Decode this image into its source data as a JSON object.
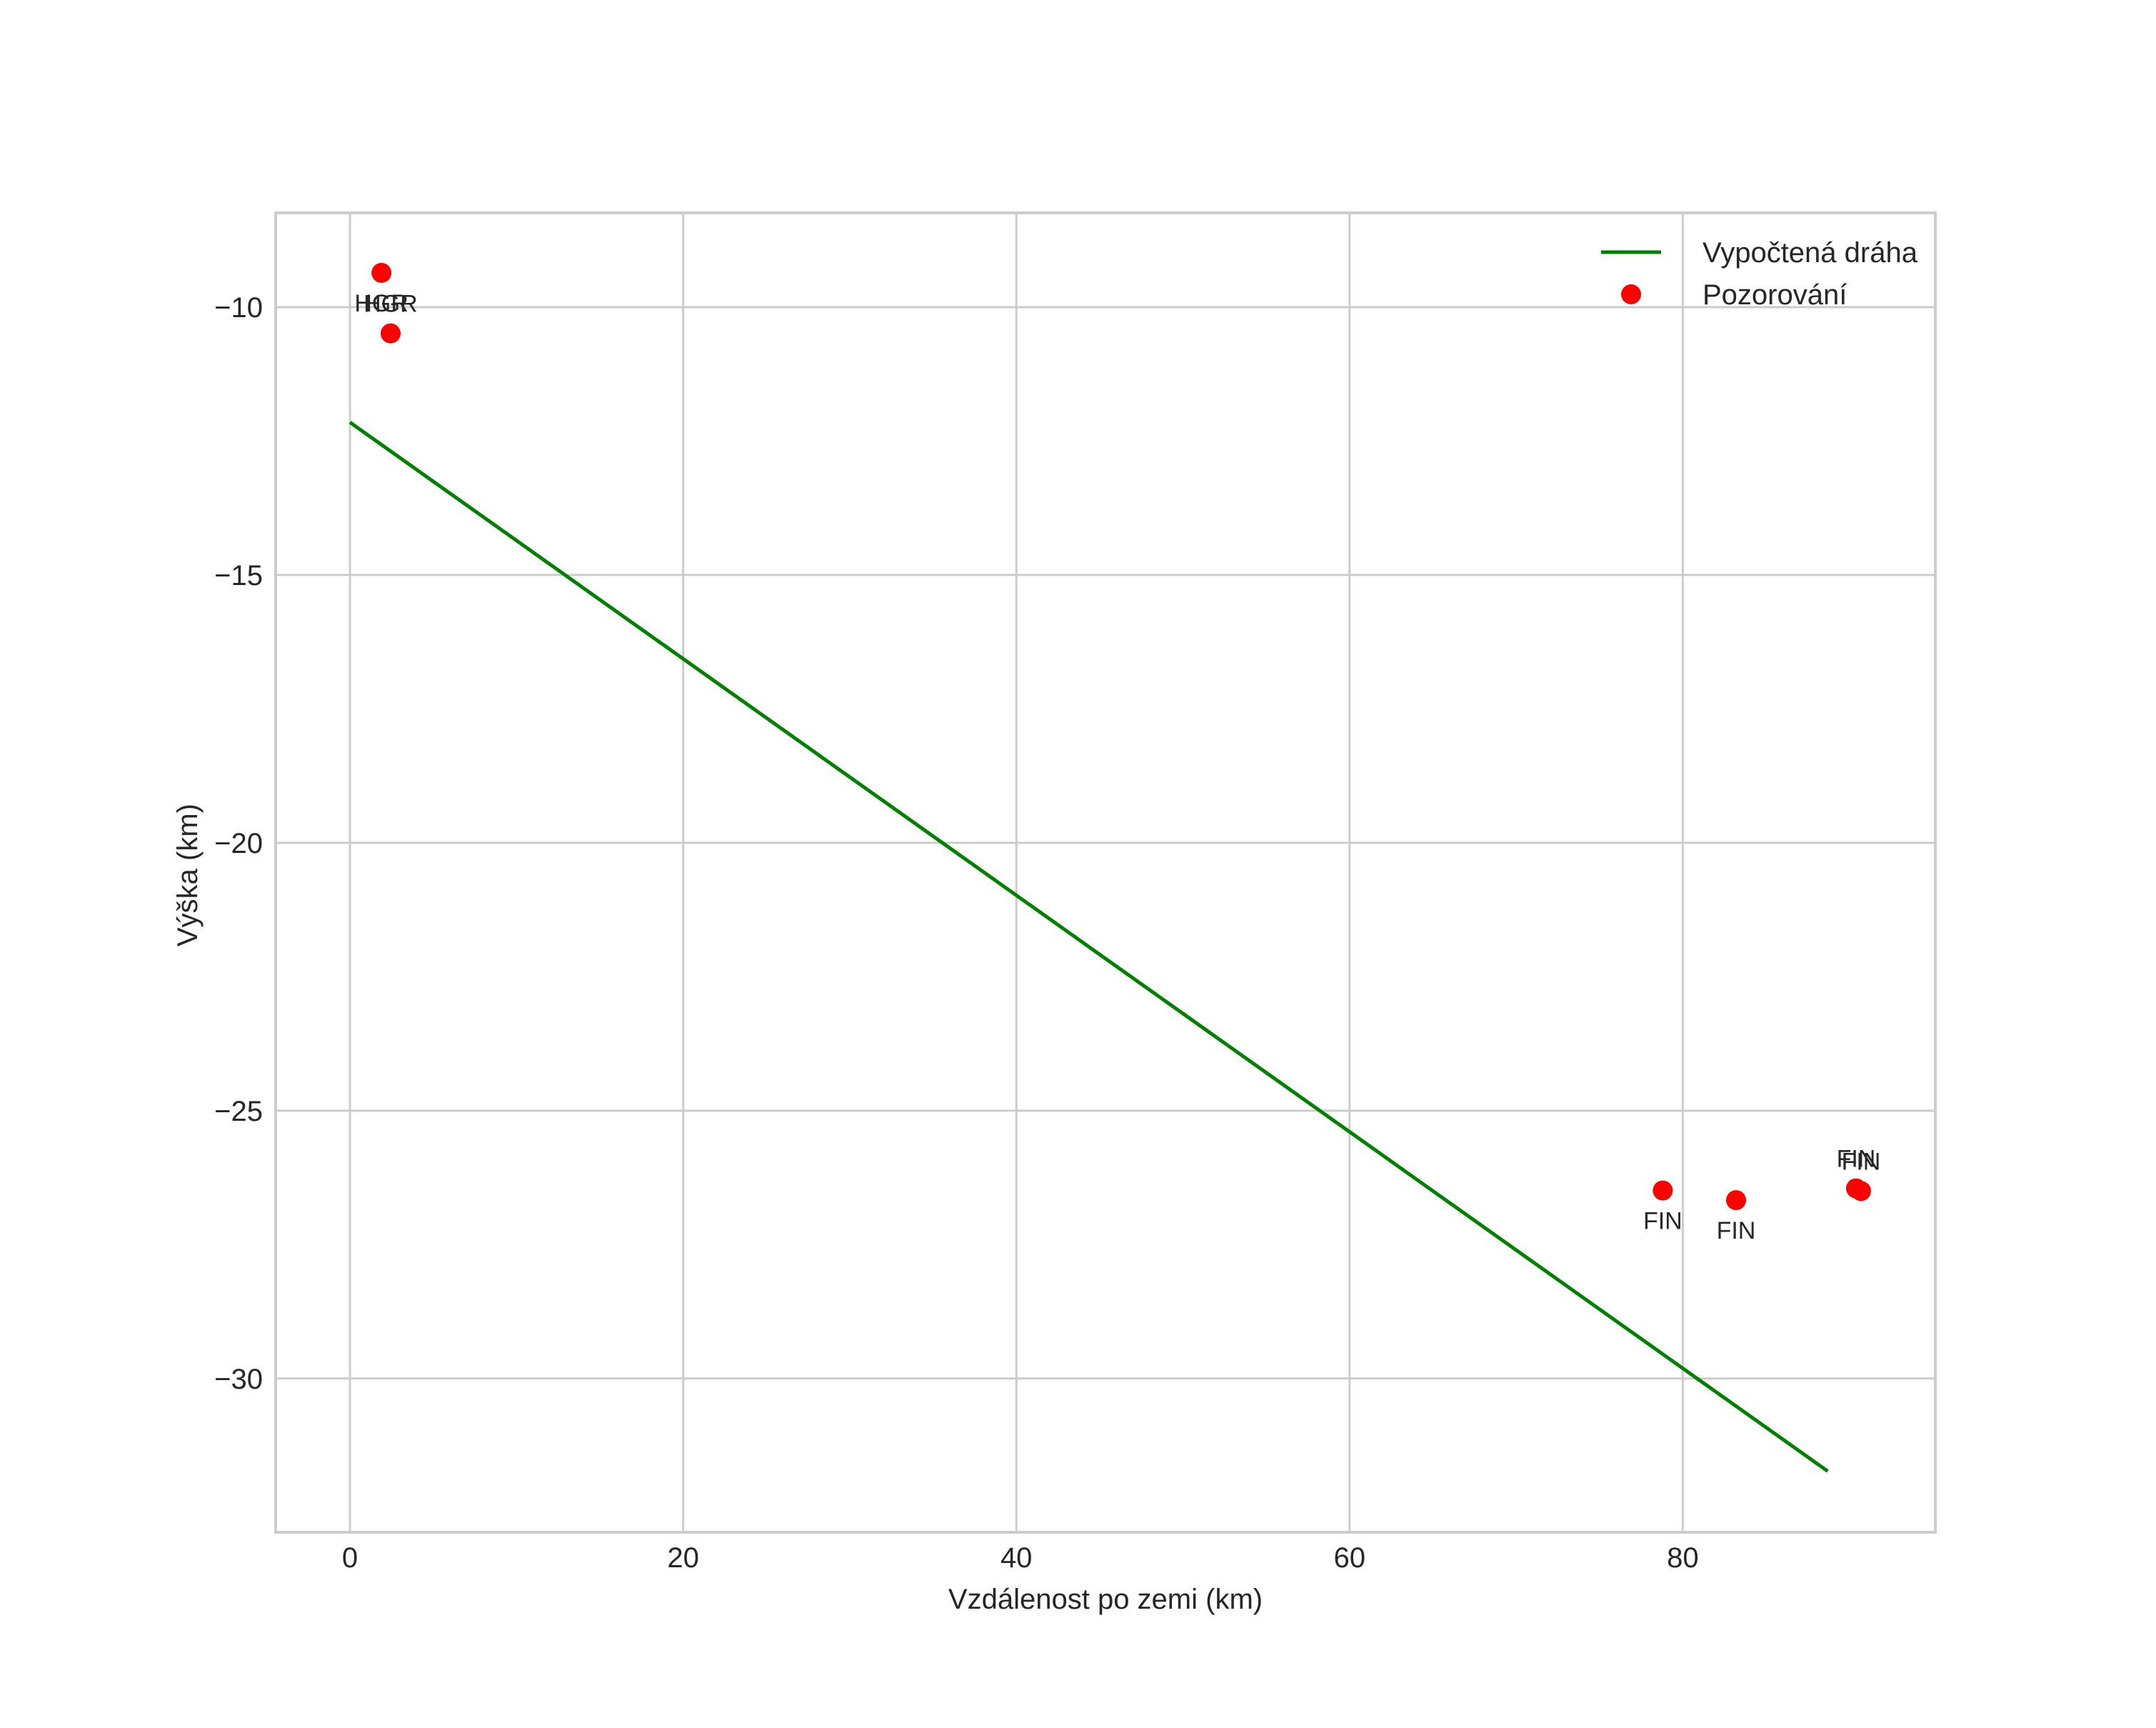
{
  "chart_data": {
    "type": "line+scatter",
    "title": "",
    "xlabel": "Vzdálenost po zemi (km)",
    "ylabel": "Výška (km)",
    "xlim": [
      -4.46,
      95.16
    ],
    "ylim": [
      -32.87,
      -8.24
    ],
    "xticks": [
      0,
      20,
      40,
      60,
      80
    ],
    "xtick_labels": [
      "0",
      "20",
      "40",
      "60",
      "80"
    ],
    "yticks": [
      -10,
      -15,
      -20,
      -25,
      -30
    ],
    "ytick_labels": [
      "−10",
      "−15",
      "−20",
      "−25",
      "−30"
    ],
    "grid": true,
    "legend_position": "upper right",
    "series": [
      {
        "name": "Vypočtená dráha",
        "type": "line",
        "color": "#008000",
        "x": [
          0.0,
          88.7
        ],
        "y": [
          -12.15,
          -31.73
        ]
      },
      {
        "name": "Pozorování",
        "type": "scatter",
        "color": "#ff0000",
        "points": [
          {
            "x": 1.89,
            "y": -9.36,
            "label": "HGR",
            "label_pos": "below"
          },
          {
            "x": 2.44,
            "y": -10.49,
            "label": "HGR",
            "label_pos": "above"
          },
          {
            "x": 78.8,
            "y": -26.49,
            "label": "FIN",
            "label_pos": "below"
          },
          {
            "x": 83.2,
            "y": -26.67,
            "label": "FIN",
            "label_pos": "below"
          },
          {
            "x": 90.4,
            "y": -26.45,
            "label": "FIN",
            "label_pos": "above"
          },
          {
            "x": 90.7,
            "y": -26.5,
            "label": "FIN",
            "label_pos": "above"
          }
        ]
      }
    ]
  },
  "legend": {
    "items": [
      {
        "label": "Vypočtená dráha",
        "marker": "line",
        "color": "#008000"
      },
      {
        "label": "Pozorování",
        "marker": "dot",
        "color": "#ff0000"
      }
    ]
  },
  "style": {
    "grid_color": "#cccccc",
    "frame_color": "#cccccc",
    "text_color": "#262626"
  }
}
